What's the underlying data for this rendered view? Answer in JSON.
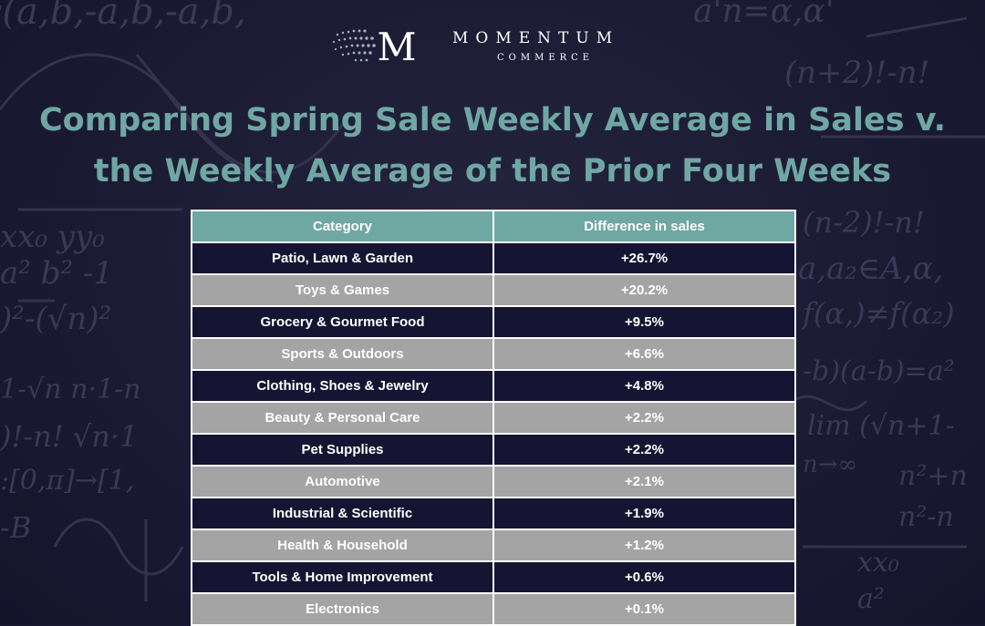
{
  "brand": {
    "name": "MOMENTUM",
    "sub": "COMMERCE",
    "mark": "M"
  },
  "title_lines": [
    "Comparing Spring Sale Weekly Average in Sales v.",
    "the Weekly Average of the Prior Four Weeks"
  ],
  "colors": {
    "background": "#1b1a33",
    "title": "#6fa7a3",
    "header": "#6fa7a3",
    "row_dark": "#151432",
    "row_light": "#a4a4a4"
  },
  "chart_data": {
    "type": "table",
    "title": "Comparing Spring Sale Weekly Average in Sales v. the Weekly Average of the Prior Four Weeks",
    "columns": [
      "Category",
      "Difference in sales"
    ],
    "rows": [
      [
        "Patio, Lawn & Garden",
        "+26.7%"
      ],
      [
        "Toys & Games",
        "+20.2%"
      ],
      [
        "Grocery & Gourmet Food",
        "+9.5%"
      ],
      [
        "Sports & Outdoors",
        "+6.6%"
      ],
      [
        "Clothing, Shoes & Jewelry",
        "+4.8%"
      ],
      [
        "Beauty & Personal Care",
        "+2.2%"
      ],
      [
        "Pet Supplies",
        "+2.2%"
      ],
      [
        "Automotive",
        "+2.1%"
      ],
      [
        "Industrial & Scientific",
        "+1.9%"
      ],
      [
        "Health & Household",
        "+1.2%"
      ],
      [
        "Tools & Home Improvement",
        "+0.6%"
      ],
      [
        "Electronics",
        "+0.1%"
      ]
    ],
    "values": [
      26.7,
      20.2,
      9.5,
      6.6,
      4.8,
      2.2,
      2.2,
      2.1,
      1.9,
      1.2,
      0.6,
      0.1
    ]
  }
}
